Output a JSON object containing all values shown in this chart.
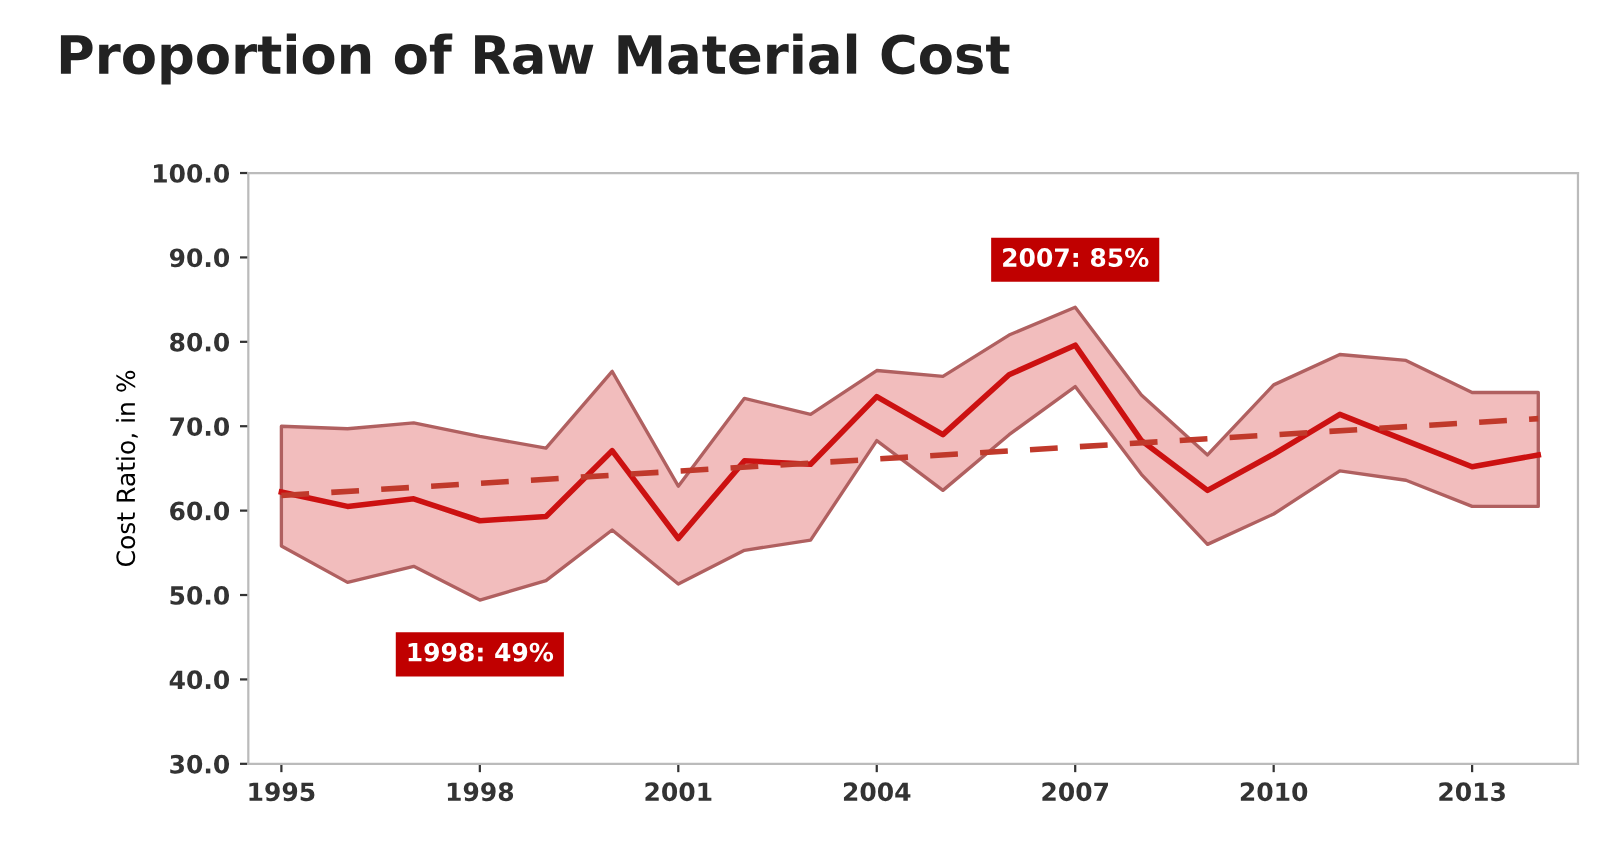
{
  "chart_data": {
    "type": "line",
    "title": "Proportion of Raw Material Cost",
    "ylabel": "Cost Ratio, in %",
    "x": [
      1995,
      1996,
      1997,
      1998,
      1999,
      2000,
      2001,
      2002,
      2003,
      2004,
      2005,
      2006,
      2007,
      2008,
      2009,
      2010,
      2011,
      2012,
      2013,
      2014
    ],
    "series": [
      {
        "color": "#cc1111",
        "line_style": "solid",
        "values": [
          62.2,
          60.5,
          61.4,
          58.8,
          59.3,
          67.1,
          56.7,
          65.9,
          65.5,
          73.5,
          69.0,
          76.1,
          79.6,
          68.3,
          62.4,
          66.7,
          71.4,
          68.3,
          65.2,
          66.6
        ],
        "upper": [
          70.0,
          69.7,
          70.4,
          68.8,
          67.4,
          76.5,
          62.9,
          73.3,
          71.4,
          76.6,
          75.9,
          80.8,
          84.1,
          73.7,
          66.6,
          74.9,
          78.5,
          77.8,
          74.0,
          74.0
        ],
        "lower": [
          55.8,
          51.5,
          53.4,
          49.4,
          51.7,
          57.7,
          51.3,
          55.3,
          56.5,
          68.3,
          62.4,
          69.0,
          74.7,
          64.3,
          56.0,
          59.6,
          64.7,
          63.6,
          60.5,
          60.5
        ]
      },
      {
        "type": "line",
        "color": "#c0392b",
        "line_style": "dashed",
        "x": [
          1995,
          2014
        ],
        "values": [
          61.8,
          70.9
        ]
      }
    ],
    "annotations": [
      {
        "text": "2007: 85%",
        "x": 2007,
        "y": 85
      },
      {
        "text": "1998: 49%",
        "x": 1998,
        "y": 49
      }
    ],
    "xlim": [
      1994.5,
      2014.6
    ],
    "xticks": [
      1995,
      1998,
      2001,
      2004,
      2007,
      2010,
      2013
    ],
    "ylim": [
      30,
      100
    ],
    "yticks": [
      {
        "value": 30,
        "label": "30.0"
      },
      {
        "value": 40,
        "label": "40.0"
      },
      {
        "value": 50,
        "label": "50.0"
      },
      {
        "value": 60,
        "label": "60.0"
      },
      {
        "value": 70,
        "label": "70.0"
      },
      {
        "value": 80,
        "label": "80.0"
      },
      {
        "value": 90,
        "label": "90.0"
      },
      {
        "value": 100,
        "label": "100.0"
      }
    ],
    "grid": false,
    "legend": false,
    "marker": "none"
  }
}
